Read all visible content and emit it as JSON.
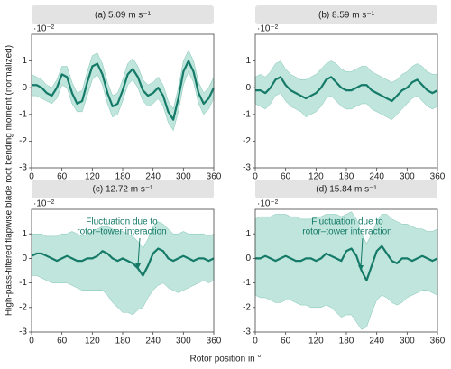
{
  "figure": {
    "ylabel": "High-pass-filtered flapwise blade root bending moment (normalized)",
    "xlabel": "Rotor position in °"
  },
  "chart_data": [
    {
      "type": "line",
      "title": "(a) 5.09 m s⁻¹",
      "multiplier": "·10⁻²",
      "color": "#157a68",
      "band_color": "#a9dcd0",
      "x": [
        0,
        10,
        20,
        30,
        40,
        50,
        60,
        70,
        80,
        90,
        100,
        110,
        120,
        130,
        140,
        150,
        160,
        170,
        180,
        190,
        200,
        210,
        220,
        230,
        240,
        250,
        260,
        270,
        280,
        290,
        300,
        310,
        320,
        330,
        340,
        350,
        360
      ],
      "values": [
        0.1,
        0.1,
        0,
        -0.2,
        -0.3,
        0,
        0.5,
        0.4,
        -0.2,
        -0.6,
        -0.5,
        0.2,
        0.8,
        0.9,
        0.5,
        -0.2,
        -0.7,
        -0.6,
        -0.1,
        0.5,
        0.7,
        0.4,
        -0.1,
        -0.3,
        -0.2,
        0,
        -0.3,
        -0.9,
        -1.2,
        -0.4,
        0.6,
        1.0,
        0.6,
        -0.2,
        -0.6,
        -0.4,
        0
      ],
      "band_low": [
        -0.3,
        -0.3,
        -0.4,
        -0.5,
        -0.6,
        -0.4,
        0.1,
        0,
        -0.6,
        -0.9,
        -0.9,
        -0.3,
        0.3,
        0.5,
        0.1,
        -0.6,
        -1.1,
        -1.0,
        -0.5,
        0.1,
        0.3,
        0,
        -0.5,
        -0.7,
        -0.6,
        -0.4,
        -0.7,
        -1.3,
        -1.6,
        -0.9,
        0.1,
        0.6,
        0.2,
        -0.6,
        -1.0,
        -0.8,
        -0.4
      ],
      "band_high": [
        0.5,
        0.4,
        0.3,
        0.1,
        0,
        0.3,
        0.8,
        0.8,
        0.2,
        -0.2,
        -0.1,
        0.6,
        1.2,
        1.3,
        0.9,
        0.2,
        -0.3,
        -0.2,
        0.3,
        0.9,
        1.1,
        0.8,
        0.3,
        0.1,
        0.2,
        0.4,
        0.1,
        -0.5,
        -0.8,
        0,
        1.0,
        1.4,
        1.0,
        0.2,
        -0.2,
        0,
        0.4
      ],
      "xlim": [
        0,
        360
      ],
      "xticks": [
        0,
        60,
        120,
        180,
        240,
        300,
        360
      ],
      "ylim": [
        -3,
        2
      ],
      "yticks": [
        -3,
        -2,
        -1,
        0,
        1
      ]
    },
    {
      "type": "line",
      "title": "(b) 8.59 m s⁻¹",
      "multiplier": "·10⁻²",
      "color": "#157a68",
      "band_color": "#a9dcd0",
      "x": [
        0,
        10,
        20,
        30,
        40,
        50,
        60,
        70,
        80,
        90,
        100,
        110,
        120,
        130,
        140,
        150,
        160,
        170,
        180,
        190,
        200,
        210,
        220,
        230,
        240,
        250,
        260,
        270,
        280,
        290,
        300,
        310,
        320,
        330,
        340,
        350,
        360
      ],
      "values": [
        -0.1,
        -0.1,
        -0.2,
        0,
        0.3,
        0.4,
        0.1,
        -0.1,
        -0.2,
        -0.3,
        -0.4,
        -0.3,
        -0.2,
        0,
        0.3,
        0.4,
        0.2,
        0,
        -0.1,
        -0.1,
        0,
        0.1,
        0.1,
        -0.1,
        -0.2,
        -0.3,
        -0.4,
        -0.5,
        -0.3,
        -0.1,
        0,
        0.2,
        0.3,
        0.1,
        -0.1,
        -0.2,
        -0.1
      ],
      "band_low": [
        -0.6,
        -0.7,
        -0.8,
        -0.6,
        -0.3,
        -0.2,
        -0.5,
        -0.7,
        -0.8,
        -0.9,
        -1.1,
        -1.0,
        -0.9,
        -0.7,
        -0.4,
        -0.3,
        -0.5,
        -0.7,
        -0.8,
        -0.8,
        -0.7,
        -0.6,
        -0.6,
        -0.8,
        -0.9,
        -1.0,
        -1.1,
        -1.2,
        -1.0,
        -0.8,
        -0.6,
        -0.4,
        -0.3,
        -0.5,
        -0.7,
        -0.8,
        -0.7
      ],
      "band_high": [
        0.4,
        0.5,
        0.4,
        0.6,
        0.9,
        1.0,
        0.7,
        0.5,
        0.4,
        0.3,
        0.3,
        0.4,
        0.5,
        0.7,
        0.9,
        1.0,
        0.9,
        0.7,
        0.6,
        0.6,
        0.7,
        0.8,
        0.8,
        0.6,
        0.5,
        0.4,
        0.3,
        0.2,
        0.3,
        0.5,
        0.6,
        0.8,
        0.9,
        0.8,
        0.6,
        0.5,
        0.5
      ],
      "xlim": [
        0,
        360
      ],
      "xticks": [
        0,
        60,
        120,
        180,
        240,
        300,
        360
      ],
      "ylim": [
        -3,
        2
      ],
      "yticks": [
        -3,
        -2,
        -1,
        0,
        1
      ]
    },
    {
      "type": "line",
      "title": "(c) 12.72 m s⁻¹",
      "multiplier": "·10⁻²",
      "color": "#157a68",
      "band_color": "#a9dcd0",
      "annotation": [
        "Fluctuation due to",
        "rotor–tower interaction"
      ],
      "x": [
        0,
        10,
        20,
        30,
        40,
        50,
        60,
        70,
        80,
        90,
        100,
        110,
        120,
        130,
        140,
        150,
        160,
        170,
        180,
        190,
        200,
        210,
        220,
        230,
        240,
        250,
        260,
        270,
        280,
        290,
        300,
        310,
        320,
        330,
        340,
        350,
        360
      ],
      "values": [
        0.1,
        0.2,
        0.2,
        0.1,
        0,
        -0.1,
        0,
        0.1,
        0,
        -0.1,
        -0.1,
        0,
        0,
        0.1,
        0.3,
        0.2,
        0,
        -0.1,
        0,
        -0.1,
        -0.2,
        -0.4,
        -0.7,
        -0.3,
        0.2,
        0.4,
        0.3,
        0,
        -0.1,
        0,
        0.1,
        0,
        -0.1,
        0,
        0,
        -0.1,
        0
      ],
      "band_low": [
        -0.7,
        -0.7,
        -0.8,
        -0.9,
        -1.0,
        -1.0,
        -1.0,
        -1.0,
        -1.1,
        -1.2,
        -1.3,
        -1.3,
        -1.3,
        -1.3,
        -1.3,
        -1.5,
        -1.8,
        -2.0,
        -2.2,
        -2.2,
        -2.3,
        -2.1,
        -2.0,
        -1.6,
        -1.3,
        -1.1,
        -1.0,
        -1.2,
        -1.3,
        -1.4,
        -1.3,
        -1.2,
        -1.1,
        -1.0,
        -0.9,
        -1.0,
        -0.9
      ],
      "band_high": [
        1.0,
        1.0,
        1.0,
        0.9,
        0.9,
        0.9,
        1.0,
        1.0,
        1.1,
        1.0,
        0.9,
        1.0,
        1.1,
        1.2,
        1.3,
        1.3,
        1.2,
        1.1,
        1.1,
        1.0,
        0.9,
        0.7,
        0.4,
        0.8,
        1.3,
        1.5,
        1.4,
        1.2,
        1.0,
        1.0,
        1.1,
        1.0,
        1.0,
        1.0,
        1.0,
        0.9,
        1.0
      ],
      "xlim": [
        0,
        360
      ],
      "xticks": [
        0,
        60,
        120,
        180,
        240,
        300,
        360
      ],
      "ylim": [
        -3,
        2
      ],
      "yticks": [
        -3,
        -2,
        -1,
        0,
        1
      ]
    },
    {
      "type": "line",
      "title": "(d) 15.84 m s⁻¹",
      "multiplier": "·10⁻²",
      "color": "#157a68",
      "band_color": "#a9dcd0",
      "annotation": [
        "Fluctuation due to",
        "rotor–tower interaction"
      ],
      "x": [
        0,
        10,
        20,
        30,
        40,
        50,
        60,
        70,
        80,
        90,
        100,
        110,
        120,
        130,
        140,
        150,
        160,
        170,
        180,
        190,
        200,
        210,
        220,
        230,
        240,
        250,
        260,
        270,
        280,
        290,
        300,
        310,
        320,
        330,
        340,
        350,
        360
      ],
      "values": [
        0,
        0,
        0.1,
        0,
        -0.1,
        0,
        0.1,
        0,
        -0.1,
        -0.1,
        0,
        0,
        -0.1,
        0,
        0.2,
        0.1,
        0,
        -0.1,
        0.3,
        0.4,
        0.1,
        -0.5,
        -0.9,
        -0.3,
        0.3,
        0.5,
        0.2,
        -0.1,
        -0.2,
        0,
        0,
        -0.1,
        0,
        0.1,
        0,
        -0.1,
        0
      ],
      "band_low": [
        -1.5,
        -1.6,
        -1.6,
        -1.7,
        -1.8,
        -1.8,
        -1.7,
        -1.7,
        -1.8,
        -1.9,
        -1.9,
        -2.0,
        -2.0,
        -2.0,
        -1.9,
        -2.0,
        -2.2,
        -2.4,
        -2.3,
        -2.3,
        -2.6,
        -2.9,
        -2.8,
        -2.2,
        -1.7,
        -1.5,
        -1.6,
        -1.8,
        -1.9,
        -1.8,
        -1.6,
        -1.5,
        -1.4,
        -1.3,
        -1.3,
        -1.4,
        -1.5
      ],
      "band_high": [
        1.6,
        1.7,
        1.7,
        1.7,
        1.8,
        1.8,
        1.8,
        1.7,
        1.7,
        1.6,
        1.6,
        1.6,
        1.7,
        1.7,
        1.8,
        1.8,
        1.8,
        1.7,
        1.8,
        1.9,
        1.6,
        1.0,
        0.6,
        1.0,
        1.5,
        1.8,
        1.8,
        1.6,
        1.5,
        1.4,
        1.4,
        1.3,
        1.2,
        1.2,
        1.1,
        1.1,
        1.2
      ],
      "xlim": [
        0,
        360
      ],
      "xticks": [
        0,
        60,
        120,
        180,
        240,
        300,
        360
      ],
      "ylim": [
        -3,
        2
      ],
      "yticks": [
        -3,
        -2,
        -1,
        0,
        1
      ]
    }
  ]
}
